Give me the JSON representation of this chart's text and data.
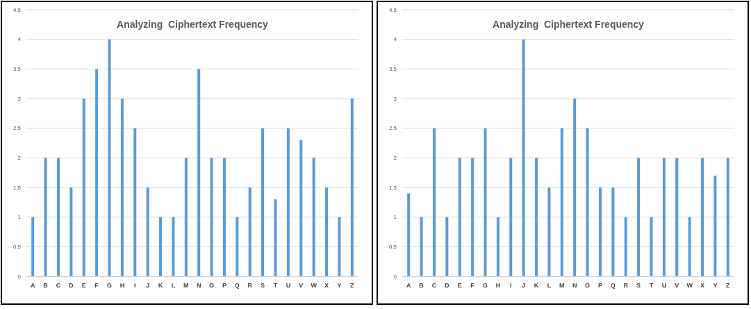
{
  "chart_data": [
    {
      "type": "bar",
      "title": "Analyzing  Ciphertext Frequency",
      "categories": [
        "A",
        "B",
        "C",
        "D",
        "E",
        "F",
        "G",
        "H",
        "I",
        "J",
        "K",
        "L",
        "M",
        "N",
        "O",
        "P",
        "Q",
        "R",
        "S",
        "T",
        "U",
        "V",
        "W",
        "X",
        "Y",
        "Z"
      ],
      "values": [
        1,
        2,
        2,
        1.5,
        3,
        3.5,
        4,
        3,
        2.5,
        1.5,
        1,
        1,
        2,
        3.5,
        2,
        2,
        1,
        1.5,
        2.5,
        1.3,
        2.5,
        2.3,
        2,
        1.5,
        1,
        3
      ],
      "color": "#5b9bd5",
      "ylim": [
        0,
        4.5
      ],
      "yticks": [
        0,
        0.5,
        1,
        1.5,
        2,
        2.5,
        3,
        3.5,
        4,
        4.5
      ],
      "grid": "y"
    },
    {
      "type": "bar",
      "title": "Analyzing  Ciphertext Frequency",
      "categories": [
        "A",
        "B",
        "C",
        "D",
        "E",
        "F",
        "G",
        "H",
        "I",
        "J",
        "K",
        "L",
        "M",
        "N",
        "O",
        "P",
        "Q",
        "R",
        "S",
        "T",
        "U",
        "V",
        "W",
        "X",
        "Y",
        "Z"
      ],
      "values": [
        1.4,
        1,
        2.5,
        1,
        2,
        2,
        2.5,
        1,
        2,
        4,
        2,
        1.5,
        2.5,
        3,
        2.5,
        1.5,
        1.5,
        1,
        2,
        1,
        2,
        2,
        1,
        2,
        1.7,
        2
      ],
      "color": "#5b9bd5",
      "ylim": [
        0,
        4.5
      ],
      "yticks": [
        0,
        0.5,
        1,
        1.5,
        2,
        2.5,
        3,
        3.5,
        4,
        4.5
      ],
      "grid": "y"
    }
  ]
}
